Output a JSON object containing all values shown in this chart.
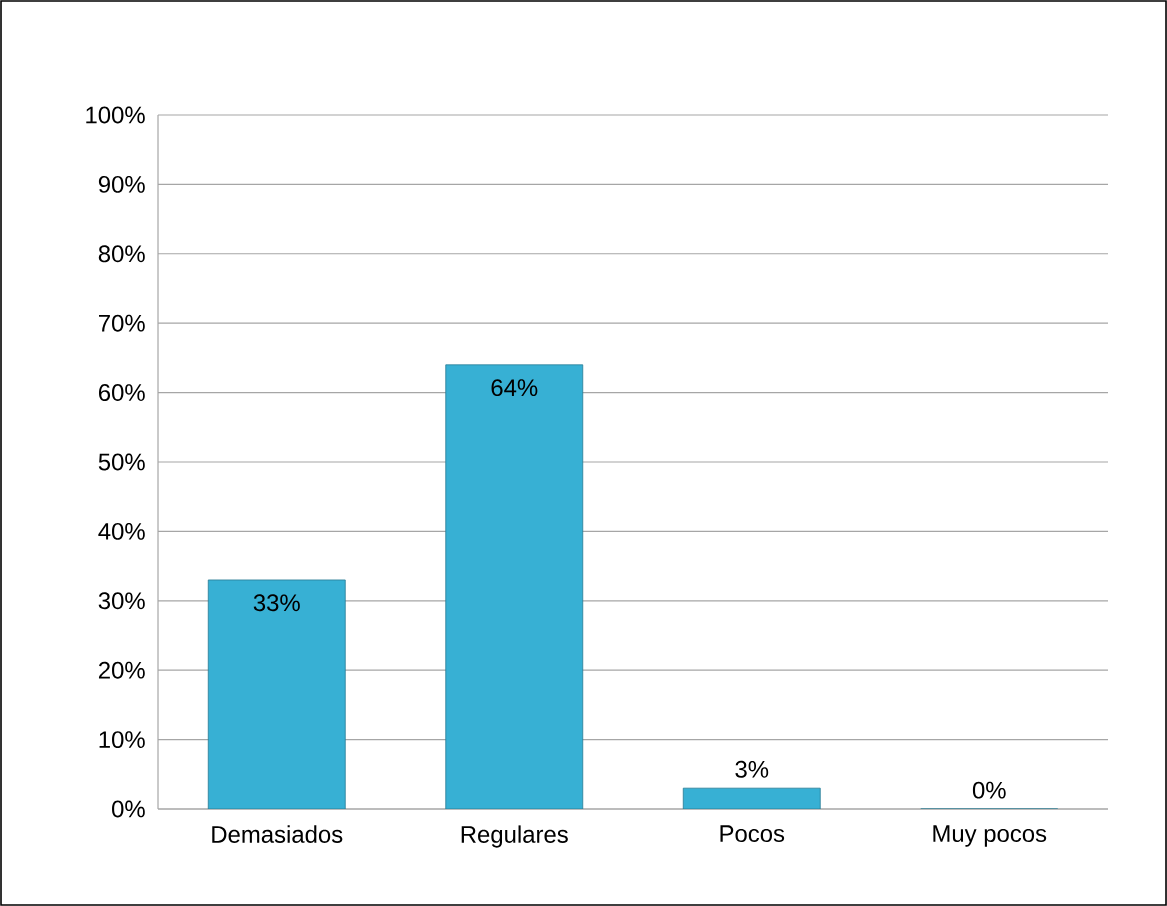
{
  "chart_data": {
    "type": "bar",
    "categories": [
      "Demasiados",
      "Regulares",
      "Pocos",
      "Muy pocos"
    ],
    "values": [
      33,
      64,
      3,
      0
    ],
    "value_labels": [
      "33%",
      "64%",
      "3%",
      "0%"
    ],
    "color": "#37b0d4",
    "ylim": [
      0,
      100
    ],
    "yticks": [
      {
        "value": 0,
        "label": "0%"
      },
      {
        "value": 10,
        "label": "10%"
      },
      {
        "value": 20,
        "label": "20%"
      },
      {
        "value": 30,
        "label": "30%"
      },
      {
        "value": 40,
        "label": "40%"
      },
      {
        "value": 50,
        "label": "50%"
      },
      {
        "value": 60,
        "label": "60%"
      },
      {
        "value": 70,
        "label": "70%"
      },
      {
        "value": 80,
        "label": "80%"
      },
      {
        "value": 90,
        "label": "90%"
      },
      {
        "value": 100,
        "label": "100%"
      }
    ],
    "grid": "y"
  }
}
